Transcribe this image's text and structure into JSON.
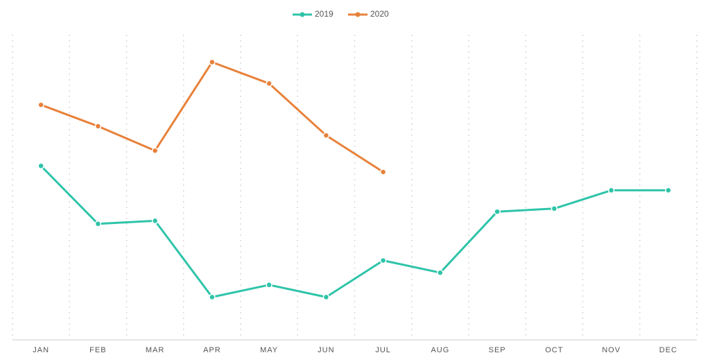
{
  "chart_data": {
    "type": "line",
    "categories": [
      "JAN",
      "FEB",
      "MAR",
      "APR",
      "MAY",
      "JUN",
      "JUL",
      "AUG",
      "SEP",
      "OCT",
      "NOV",
      "DEC"
    ],
    "series": [
      {
        "name": "2019",
        "color": "#2ec4a9",
        "values": [
          57,
          38,
          39,
          14,
          18,
          14,
          26,
          22,
          42,
          43,
          49,
          49
        ]
      },
      {
        "name": "2020",
        "color": "#e8813a",
        "values": [
          77,
          70,
          62,
          91,
          84,
          67,
          55,
          null,
          null,
          null,
          null,
          null
        ]
      }
    ],
    "ylim": [
      0,
      100
    ],
    "grid": true,
    "legend": "top"
  }
}
